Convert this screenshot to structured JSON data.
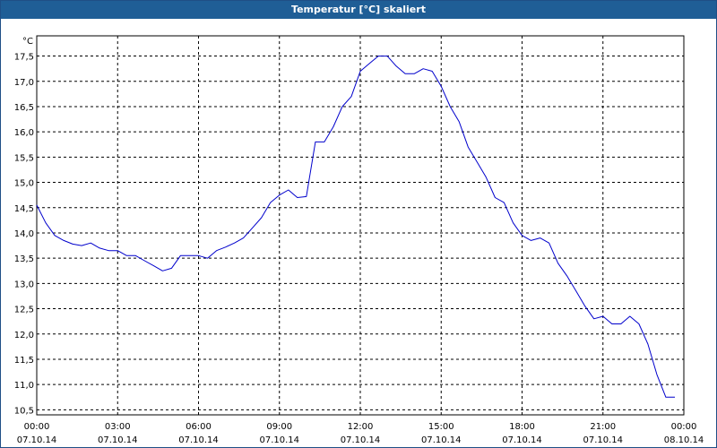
{
  "window": {
    "title": "Temperatur [°C] skaliert"
  },
  "chart_data": {
    "type": "line",
    "title": "Temperatur [°C] skaliert",
    "unit_label": "°C",
    "xlabel": "",
    "ylabel": "°C",
    "ylim": [
      10.4,
      17.9
    ],
    "yticks": [
      "10,5",
      "11,0",
      "11,5",
      "12,0",
      "12,5",
      "13,0",
      "13,5",
      "14,0",
      "14,5",
      "15,0",
      "15,5",
      "16,0",
      "16,5",
      "17,0",
      "17,5"
    ],
    "xlim": [
      "07.10.14 00:00",
      "08.10.14 00:00"
    ],
    "xticks": [
      {
        "time": "00:00",
        "date": "07.10.14"
      },
      {
        "time": "03:00",
        "date": "07.10.14"
      },
      {
        "time": "06:00",
        "date": "07.10.14"
      },
      {
        "time": "09:00",
        "date": "07.10.14"
      },
      {
        "time": "12:00",
        "date": "07.10.14"
      },
      {
        "time": "15:00",
        "date": "07.10.14"
      },
      {
        "time": "18:00",
        "date": "07.10.14"
      },
      {
        "time": "21:00",
        "date": "07.10.14"
      },
      {
        "time": "00:00",
        "date": "08.10.14"
      }
    ],
    "grid": true,
    "line_color": "#0000cc",
    "series": [
      {
        "x": [
          "00:00",
          "00:20",
          "00:40",
          "01:00",
          "01:20",
          "01:40",
          "02:00",
          "02:20",
          "02:40",
          "03:00",
          "03:20",
          "03:40",
          "04:00",
          "04:20",
          "04:40",
          "05:00",
          "05:20",
          "05:40",
          "06:00",
          "06:20",
          "06:40",
          "07:00",
          "07:20",
          "07:40",
          "08:00",
          "08:20",
          "08:40",
          "09:00",
          "09:20",
          "09:40",
          "10:00",
          "10:20",
          "10:40",
          "11:00",
          "11:20",
          "11:40",
          "12:00",
          "12:20",
          "12:40",
          "13:00",
          "13:20",
          "13:40",
          "14:00",
          "14:20",
          "14:40",
          "15:00",
          "15:20",
          "15:40",
          "16:00",
          "16:20",
          "16:40",
          "17:00",
          "17:20",
          "17:40",
          "18:00",
          "18:20",
          "18:40",
          "19:00",
          "19:20",
          "19:40",
          "20:00",
          "20:20",
          "20:40",
          "21:00",
          "21:20",
          "21:40",
          "22:00",
          "22:20",
          "22:40",
          "23:00",
          "23:20",
          "23:40"
        ],
        "y": [
          14.55,
          14.2,
          13.95,
          13.85,
          13.78,
          13.75,
          13.8,
          13.7,
          13.65,
          13.65,
          13.55,
          13.55,
          13.45,
          13.35,
          13.25,
          13.3,
          13.55,
          13.55,
          13.55,
          13.5,
          13.65,
          13.72,
          13.8,
          13.9,
          14.1,
          14.3,
          14.6,
          14.75,
          14.85,
          14.7,
          14.72,
          15.8,
          15.8,
          16.1,
          16.5,
          16.7,
          17.2,
          17.35,
          17.5,
          17.5,
          17.3,
          17.15,
          17.15,
          17.25,
          17.2,
          16.9,
          16.5,
          16.2,
          15.7,
          15.4,
          15.1,
          14.7,
          14.6,
          14.2,
          13.95,
          13.85,
          13.9,
          13.8,
          13.4,
          13.15,
          12.85,
          12.55,
          12.3,
          12.35,
          12.2,
          12.2,
          12.35,
          12.2,
          11.8,
          11.2,
          10.75,
          10.75
        ]
      }
    ]
  }
}
